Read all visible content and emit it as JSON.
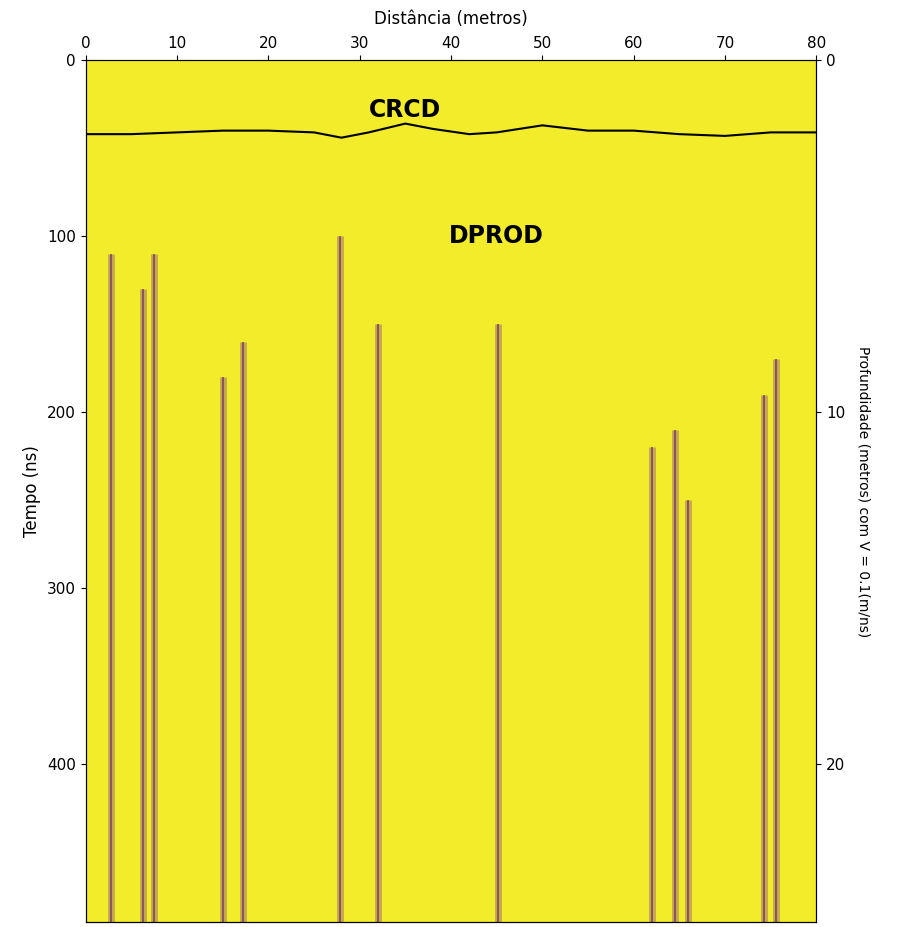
{
  "chart_data": {
    "type": "radargram",
    "color": "#f2ec2a",
    "x_label": "Distância (metros)",
    "y_label": "Tempo (ns)",
    "y2_label": "Profundidade (metros) com V = 0.1(m/ns)",
    "xlim": [
      0,
      80
    ],
    "xticks": [
      0,
      10,
      20,
      30,
      40,
      50,
      60,
      70,
      80
    ],
    "ylim": [
      490,
      0
    ],
    "yticks": [
      0,
      100,
      200,
      300,
      400
    ],
    "y2lim": [
      24.5,
      0
    ],
    "y2ticks": [
      0,
      10,
      20
    ],
    "series": [
      {
        "color": "#000000",
        "x": [
          0,
          5,
          10,
          15,
          20,
          25,
          28,
          31,
          35,
          38,
          42,
          45,
          50,
          55,
          60,
          65,
          70,
          75,
          80
        ],
        "values": [
          42,
          42,
          41,
          40,
          40,
          41,
          44,
          41,
          36,
          39,
          42,
          41,
          37,
          40,
          40,
          42,
          43,
          41,
          41
        ]
      }
    ],
    "annotations": [
      {
        "text": "CRCD",
        "x": 35,
        "y": 28
      },
      {
        "text": "DPROD",
        "x": 45,
        "y": 100
      }
    ],
    "streaks": {
      "x": [
        2.8,
        6.3,
        7.5,
        15.0,
        17.2,
        27.9,
        32.0,
        45.2,
        62.0,
        64.5,
        66.0,
        74.3,
        75.6
      ],
      "top": [
        110,
        130,
        110,
        180,
        160,
        100,
        150,
        150,
        220,
        210,
        250,
        190,
        170
      ]
    }
  }
}
